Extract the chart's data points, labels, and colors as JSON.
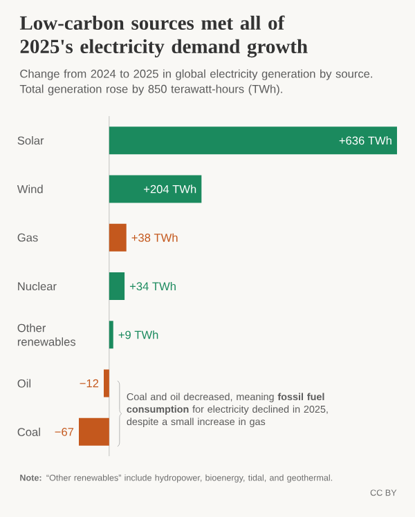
{
  "chart_data": {
    "type": "bar",
    "orientation": "horizontal",
    "title": "Low-carbon sources met all of 2025's electricity demand growth",
    "subtitle": "Change from 2024 to 2025 in global electricity generation by source. Total generation rose by 850 terawatt-hours (TWh).",
    "categories": [
      "Solar",
      "Wind",
      "Gas",
      "Nuclear",
      "Other renewables",
      "Oil",
      "Coal"
    ],
    "values": [
      636,
      204,
      38,
      34,
      9,
      -12,
      -67
    ],
    "colors": [
      "#1b8a5e",
      "#1b8a5e",
      "#c4581d",
      "#1b8a5e",
      "#1b8a5e",
      "#c4581d",
      "#c4581d"
    ],
    "value_labels": [
      "+636 TWh",
      "+204 TWh",
      "+38 TWh",
      "+34 TWh",
      "+9 TWh",
      "−12",
      "−67"
    ],
    "annotations": [
      "Coal and oil decreased, meaning **fossil fuel consumption** for electricity declined in 2025, despite a small increase in gas",
      "**Note:** “Other renewables” include hydropower, bioenergy, tidal, and geothermal.",
      "CC BY"
    ]
  }
}
